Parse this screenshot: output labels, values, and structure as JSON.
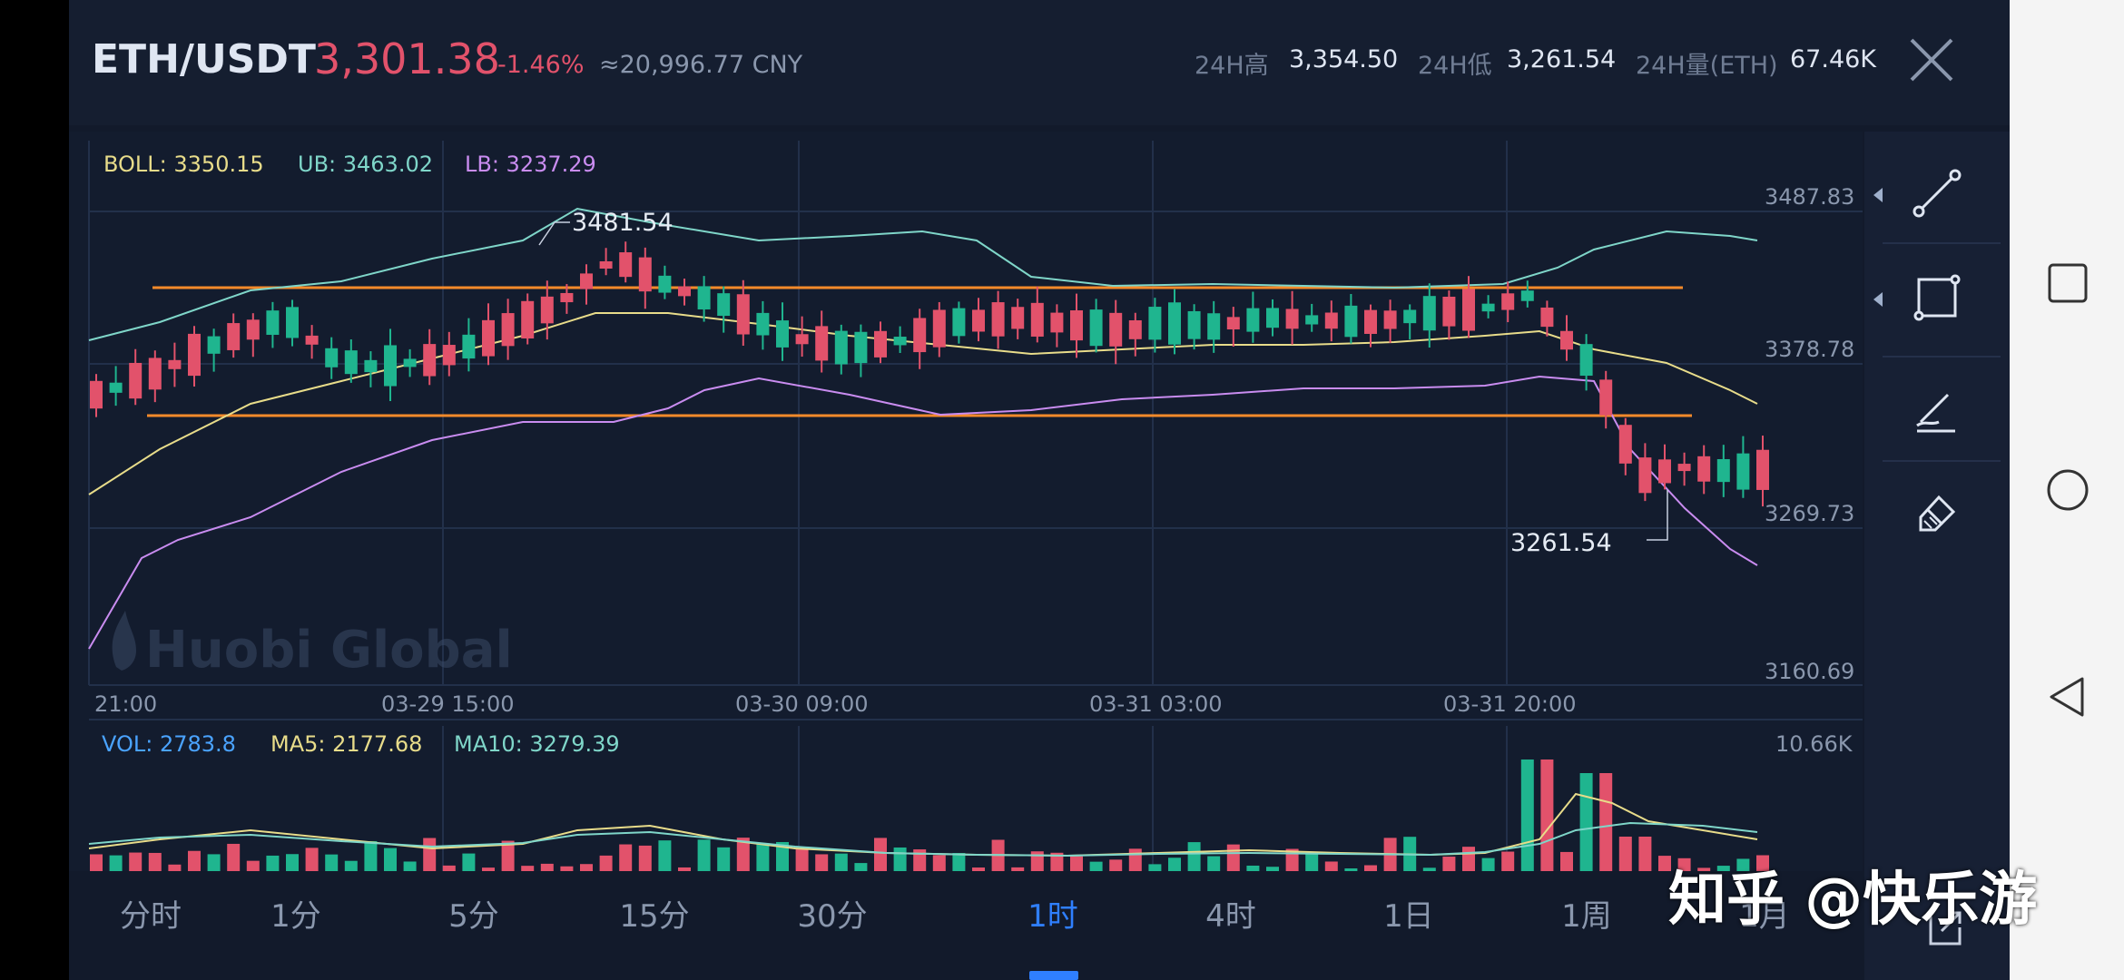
{
  "header": {
    "pair": "ETH/USDT",
    "price": "3,301.38",
    "change": "-1.46%",
    "cny": "≈20,996.77 CNY",
    "stats": [
      {
        "label": "24H高",
        "value": "3,354.50"
      },
      {
        "label": "24H低",
        "value": "3,261.54"
      },
      {
        "label": "24H量(ETH)",
        "value": "67.46K"
      }
    ]
  },
  "indicators": {
    "boll": "BOLL: 3350.15",
    "ub": "UB: 3463.02",
    "lb": "LB: 3237.29"
  },
  "price_axis": [
    "3487.83",
    "3378.78",
    "3269.73",
    "3160.69"
  ],
  "time_axis": [
    "21:00",
    "03-29 15:00",
    "03-30 09:00",
    "03-31 03:00",
    "03-31 20:00"
  ],
  "annotations": {
    "high": "3481.54",
    "low": "3261.54"
  },
  "watermark": "Huobi Global",
  "volume": {
    "vol": "VOL: 2783.8",
    "ma5": "MA5: 2177.68",
    "ma10": "MA10: 3279.39",
    "max": "10.66K"
  },
  "tabs": [
    "分时",
    "1分",
    "5分",
    "15分",
    "30分",
    "1时",
    "4时",
    "1日",
    "1周",
    "1月"
  ],
  "active_tab": "1时",
  "colors": {
    "up": "#1fb58f",
    "down": "#e2526b",
    "ub": "#7fd6c9",
    "mid": "#e8dc8a",
    "lb": "#c98cf0",
    "level": "#f58a2a",
    "accent": "#2f7fff"
  },
  "tools": [
    "line-tool-icon",
    "rect-tool-icon",
    "brush-tool-icon",
    "eraser-icon"
  ],
  "overlay": "知乎 @快乐游"
}
